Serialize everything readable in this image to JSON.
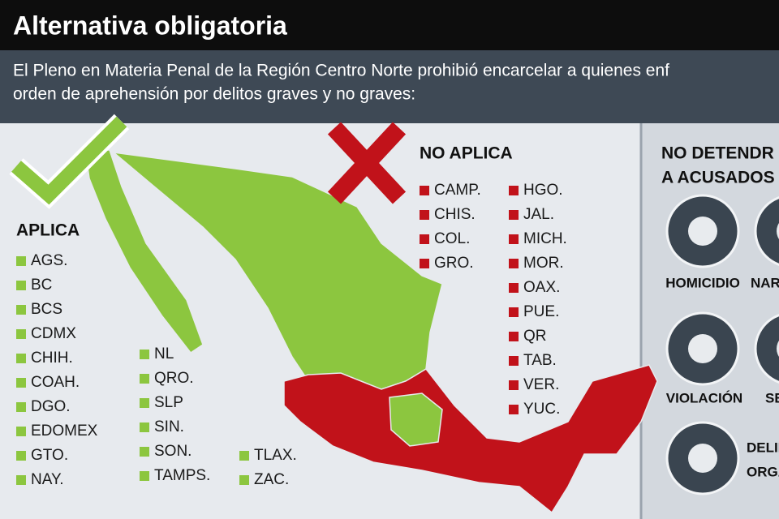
{
  "header": {
    "title": "Alternativa obligatoria",
    "subtitle": [
      "El Pleno en Materia Penal de la Región Centro Norte prohibió encarcelar a quienes enf",
      "orden de aprehensión por delitos graves y no graves:"
    ]
  },
  "aplica": {
    "heading": "APLICA",
    "columns": [
      [
        "AGS.",
        "BC",
        "BCS",
        "CDMX",
        "CHIH.",
        "COAH.",
        "DGO.",
        "EDOMEX",
        "GTO.",
        "NAY."
      ],
      [
        "NL",
        "QRO.",
        "SLP",
        "SIN.",
        "SON.",
        "TAMPS."
      ],
      [
        "TLAX.",
        "ZAC."
      ]
    ]
  },
  "no_aplica": {
    "heading": "NO APLICA",
    "columns": [
      [
        "CAMP.",
        "CHIS.",
        "COL.",
        "GRO."
      ],
      [
        "HGO.",
        "JAL.",
        "MICH.",
        "MOR.",
        "OAX.",
        "PUE.",
        "QR",
        "TAB.",
        "VER.",
        "YUC."
      ]
    ]
  },
  "side": {
    "heading": [
      "NO DETENDR",
      "A ACUSADOS"
    ],
    "labels": [
      "HOMICIDIO",
      "NARC",
      "VIOLACIÓN",
      "SE",
      "DELIN",
      "ORGA"
    ]
  }
}
